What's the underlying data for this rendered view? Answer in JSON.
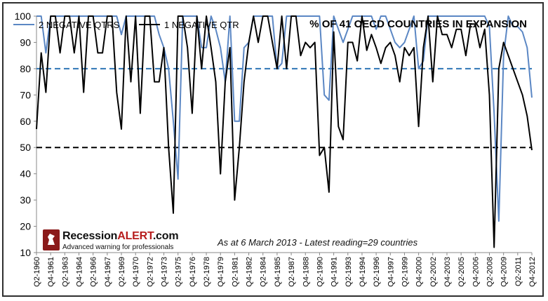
{
  "logo": {
    "name_plain": "Recession",
    "name_accent": "ALERT",
    "name_suffix": ".com",
    "tagline": "Advanced warning for professionals"
  },
  "annotation": "As at 6 March 2013  - Latest reading=29 countries",
  "chart_data": {
    "type": "line",
    "title": "% OF 41 OECD COUNTRIES IN EXPANSION",
    "xlabel": "",
    "ylabel": "",
    "ylim": [
      10,
      100
    ],
    "yticks": [
      10,
      20,
      30,
      40,
      50,
      60,
      70,
      80,
      90,
      100
    ],
    "x_tick_labels": [
      "Q2-1960",
      "Q4-1961",
      "Q2-1963",
      "Q4-1964",
      "Q2-1966",
      "Q4-1967",
      "Q2-1969",
      "Q4-1970",
      "Q2-1972",
      "Q4-1973",
      "Q2-1975",
      "Q4-1976",
      "Q2-1978",
      "Q4-1979",
      "Q2-1981",
      "Q4-1982",
      "Q2-1984",
      "Q4-1985",
      "Q2-1987",
      "Q4-1988",
      "Q2-1990",
      "Q4-1991",
      "Q2-1993",
      "Q4-1994",
      "Q2-1996",
      "Q4-1997",
      "Q2-1999",
      "Q4-2000",
      "Q2-2002",
      "Q4-2003",
      "Q2-2005",
      "Q4-2006",
      "Q2-2008",
      "Q4-2009",
      "Q2-2011",
      "Q4-2012"
    ],
    "x_start": "Q2-1960",
    "x_end": "Q4-2012",
    "legend_position": "top-left",
    "grid": false,
    "reference_lines": [
      {
        "y": 80,
        "color": "#2e75b6",
        "style": "dashed"
      },
      {
        "y": 50,
        "color": "#000000",
        "style": "dashed"
      }
    ],
    "series": [
      {
        "name": "2 NEGATIVE QTRS",
        "color": "#5b87c4",
        "x": [
          "Q2-1960",
          "Q4-1960",
          "Q2-1961",
          "Q4-1961",
          "Q2-1962",
          "Q4-1962",
          "Q2-1963",
          "Q4-1963",
          "Q2-1964",
          "Q4-1964",
          "Q2-1965",
          "Q4-1965",
          "Q2-1966",
          "Q4-1966",
          "Q2-1967",
          "Q4-1967",
          "Q2-1968",
          "Q4-1968",
          "Q2-1969",
          "Q4-1969",
          "Q2-1970",
          "Q4-1970",
          "Q2-1971",
          "Q4-1971",
          "Q2-1972",
          "Q4-1972",
          "Q2-1973",
          "Q4-1973",
          "Q2-1974",
          "Q4-1974",
          "Q2-1975",
          "Q4-1975",
          "Q2-1976",
          "Q4-1976",
          "Q2-1977",
          "Q4-1977",
          "Q2-1978",
          "Q4-1978",
          "Q2-1979",
          "Q4-1979",
          "Q2-1980",
          "Q4-1980",
          "Q2-1981",
          "Q4-1981",
          "Q2-1982",
          "Q4-1982",
          "Q2-1983",
          "Q4-1983",
          "Q2-1984",
          "Q4-1984",
          "Q2-1985",
          "Q4-1985",
          "Q2-1986",
          "Q4-1986",
          "Q2-1987",
          "Q4-1987",
          "Q2-1988",
          "Q4-1988",
          "Q2-1989",
          "Q4-1989",
          "Q2-1990",
          "Q4-1990",
          "Q2-1991",
          "Q4-1991",
          "Q2-1992",
          "Q4-1992",
          "Q2-1993",
          "Q4-1993",
          "Q2-1994",
          "Q4-1994",
          "Q2-1995",
          "Q4-1995",
          "Q2-1996",
          "Q4-1996",
          "Q2-1997",
          "Q4-1997",
          "Q2-1998",
          "Q4-1998",
          "Q2-1999",
          "Q4-1999",
          "Q2-2000",
          "Q4-2000",
          "Q2-2001",
          "Q4-2001",
          "Q2-2002",
          "Q4-2002",
          "Q2-2003",
          "Q4-2003",
          "Q2-2004",
          "Q4-2004",
          "Q2-2005",
          "Q4-2005",
          "Q2-2006",
          "Q4-2006",
          "Q2-2007",
          "Q4-2007",
          "Q2-2008",
          "Q4-2008",
          "Q2-2009",
          "Q4-2009",
          "Q2-2010",
          "Q4-2010",
          "Q2-2011",
          "Q4-2011",
          "Q2-2012",
          "Q4-2012"
        ],
        "values": [
          100,
          100,
          86,
          100,
          100,
          100,
          100,
          100,
          100,
          100,
          100,
          100,
          100,
          100,
          100,
          100,
          100,
          100,
          93,
          100,
          100,
          100,
          100,
          100,
          100,
          100,
          93,
          88,
          80,
          60,
          38,
          100,
          100,
          100,
          100,
          88,
          88,
          100,
          95,
          88,
          75,
          100,
          60,
          60,
          88,
          90,
          100,
          100,
          100,
          100,
          100,
          80,
          82,
          100,
          100,
          100,
          100,
          100,
          100,
          100,
          100,
          70,
          68,
          100,
          95,
          90,
          95,
          100,
          100,
          100,
          100,
          100,
          95,
          100,
          100,
          95,
          90,
          88,
          90,
          95,
          100,
          80,
          83,
          100,
          100,
          100,
          100,
          100,
          100,
          100,
          100,
          100,
          100,
          100,
          100,
          100,
          96,
          63,
          22,
          85,
          100,
          96,
          96,
          94,
          88,
          69
        ]
      },
      {
        "name": "1 NEGATIVE QTR",
        "color": "#000000",
        "x": [
          "Q2-1960",
          "Q4-1960",
          "Q2-1961",
          "Q4-1961",
          "Q2-1962",
          "Q4-1962",
          "Q2-1963",
          "Q4-1963",
          "Q2-1964",
          "Q4-1964",
          "Q2-1965",
          "Q4-1965",
          "Q2-1966",
          "Q4-1966",
          "Q2-1967",
          "Q4-1967",
          "Q2-1968",
          "Q4-1968",
          "Q2-1969",
          "Q4-1969",
          "Q2-1970",
          "Q4-1970",
          "Q2-1971",
          "Q4-1971",
          "Q2-1972",
          "Q4-1972",
          "Q2-1973",
          "Q4-1973",
          "Q2-1974",
          "Q4-1974",
          "Q2-1975",
          "Q4-1975",
          "Q2-1976",
          "Q4-1976",
          "Q2-1977",
          "Q4-1977",
          "Q2-1978",
          "Q4-1978",
          "Q2-1979",
          "Q4-1979",
          "Q2-1980",
          "Q4-1980",
          "Q2-1981",
          "Q4-1981",
          "Q2-1982",
          "Q4-1982",
          "Q2-1983",
          "Q4-1983",
          "Q2-1984",
          "Q4-1984",
          "Q2-1985",
          "Q4-1985",
          "Q2-1986",
          "Q4-1986",
          "Q2-1987",
          "Q4-1987",
          "Q2-1988",
          "Q4-1988",
          "Q2-1989",
          "Q4-1989",
          "Q2-1990",
          "Q4-1990",
          "Q2-1991",
          "Q4-1991",
          "Q2-1992",
          "Q4-1992",
          "Q2-1993",
          "Q4-1993",
          "Q2-1994",
          "Q4-1994",
          "Q2-1995",
          "Q4-1995",
          "Q2-1996",
          "Q4-1996",
          "Q2-1997",
          "Q4-1997",
          "Q2-1998",
          "Q4-1998",
          "Q2-1999",
          "Q4-1999",
          "Q2-2000",
          "Q4-2000",
          "Q2-2001",
          "Q4-2001",
          "Q2-2002",
          "Q4-2002",
          "Q2-2003",
          "Q4-2003",
          "Q2-2004",
          "Q4-2004",
          "Q2-2005",
          "Q4-2005",
          "Q2-2006",
          "Q4-2006",
          "Q2-2007",
          "Q4-2007",
          "Q2-2008",
          "Q4-2008",
          "Q2-2009",
          "Q4-2009",
          "Q2-2010",
          "Q4-2010",
          "Q2-2011",
          "Q4-2011",
          "Q2-2012",
          "Q4-2012"
        ],
        "values": [
          57,
          86,
          71,
          100,
          100,
          86,
          100,
          100,
          86,
          100,
          71,
          100,
          100,
          86,
          86,
          100,
          100,
          71,
          57,
          100,
          75,
          100,
          63,
          100,
          100,
          75,
          75,
          88,
          50,
          25,
          100,
          100,
          88,
          63,
          100,
          80,
          100,
          88,
          75,
          40,
          75,
          88,
          30,
          50,
          75,
          90,
          100,
          90,
          100,
          100,
          90,
          80,
          100,
          80,
          100,
          100,
          85,
          90,
          88,
          90,
          47,
          50,
          33,
          94,
          58,
          53,
          90,
          90,
          83,
          100,
          87,
          93,
          88,
          82,
          88,
          90,
          85,
          75,
          88,
          85,
          88,
          58,
          88,
          100,
          75,
          100,
          93,
          93,
          88,
          95,
          95,
          85,
          97,
          97,
          88,
          95,
          70,
          12,
          80,
          90,
          85,
          80,
          75,
          70,
          62,
          49
        ]
      }
    ]
  }
}
